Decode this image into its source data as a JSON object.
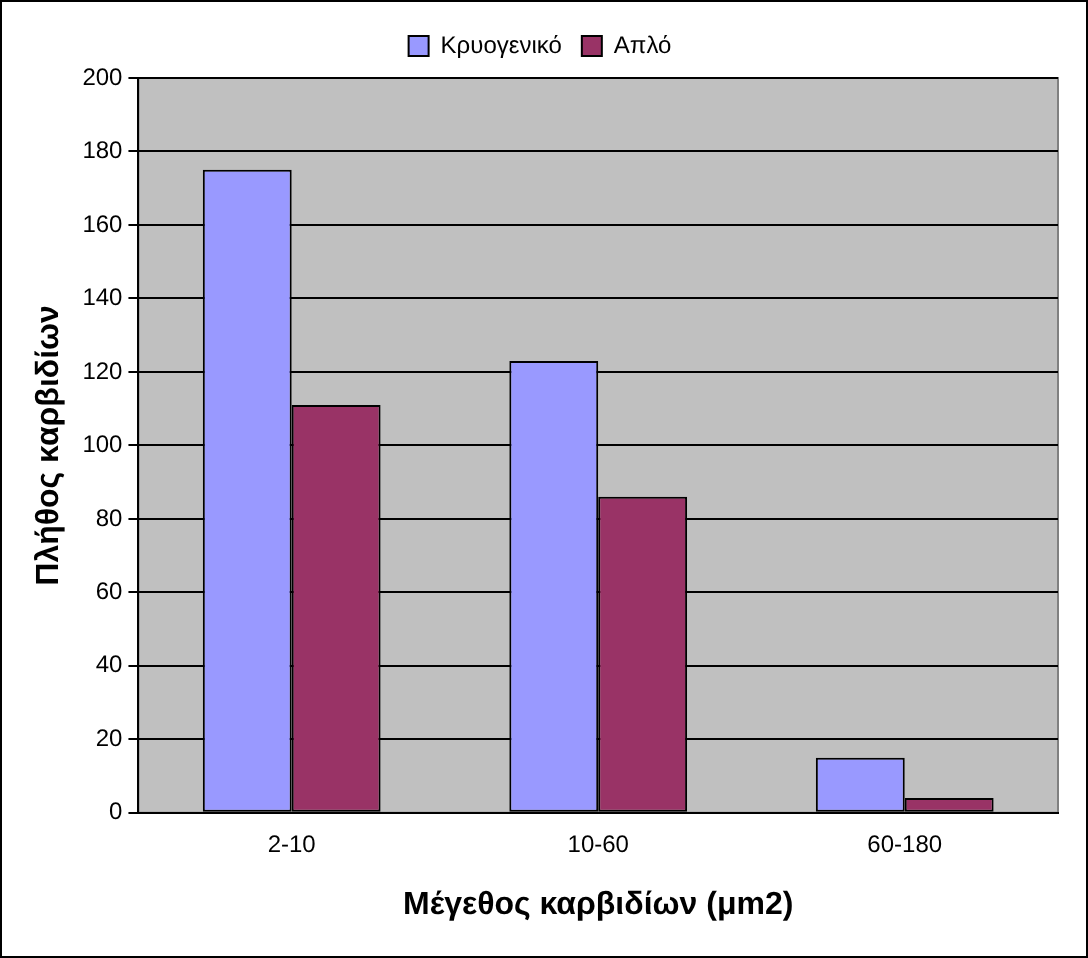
{
  "chart_data": {
    "type": "bar",
    "xlabel": "Μέγεθος καρβιδίων (μm2)",
    "ylabel": "Πλήθος καρβιδίων",
    "categories": [
      "2-10",
      "10-60",
      "60-180"
    ],
    "series": [
      {
        "name": "Κρυογενικό",
        "color": "#9999ff",
        "values": [
          175,
          123,
          15
        ]
      },
      {
        "name": "Απλό",
        "color": "#993366",
        "values": [
          111,
          86,
          4
        ]
      }
    ],
    "ylim": [
      0,
      200
    ],
    "yticks": [
      0,
      20,
      40,
      60,
      80,
      100,
      120,
      140,
      160,
      180,
      200
    ],
    "grid": "y",
    "legend": "top"
  }
}
